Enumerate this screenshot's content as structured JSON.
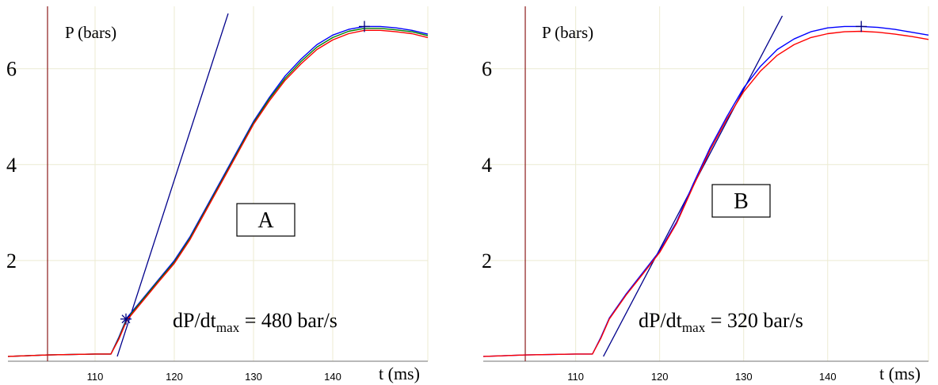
{
  "chart_data": [
    {
      "type": "line",
      "panel_label": "A",
      "ylabel": "P (bars)",
      "xlabel": "t (ms)",
      "xlim": [
        99,
        152
      ],
      "ylim": [
        -0.1,
        7.3
      ],
      "x_ticks": [
        "110",
        "120",
        "130",
        "140"
      ],
      "y_ticks": [
        "2",
        "4",
        "6"
      ],
      "annotation": {
        "prefix": "dP/dt",
        "subscript": "max",
        "suffix": " = 480 bar/s"
      },
      "trigger_time": 104,
      "colors": {
        "blue": "#0000ff",
        "green": "#008000",
        "red": "#ff0000",
        "tangent": "#00008b",
        "trigger": "#8b1a1a"
      },
      "series": [
        {
          "color": "blue",
          "x": [
            99,
            104,
            110,
            112,
            113,
            114,
            116,
            118,
            120,
            122,
            124,
            126,
            128,
            130,
            132,
            134,
            136,
            138,
            140,
            142,
            144,
            146,
            148,
            150,
            152
          ],
          "y": [
            0,
            0.03,
            0.05,
            0.05,
            0.4,
            0.8,
            1.2,
            1.6,
            2.0,
            2.5,
            3.1,
            3.7,
            4.3,
            4.9,
            5.4,
            5.85,
            6.2,
            6.5,
            6.7,
            6.82,
            6.88,
            6.88,
            6.85,
            6.8,
            6.72
          ]
        },
        {
          "color": "green",
          "x": [
            99,
            104,
            110,
            112,
            113,
            114,
            116,
            118,
            120,
            122,
            124,
            126,
            128,
            130,
            132,
            134,
            136,
            138,
            140,
            142,
            144,
            146,
            148,
            150,
            152
          ],
          "y": [
            0,
            0.03,
            0.05,
            0.05,
            0.38,
            0.78,
            1.18,
            1.58,
            1.97,
            2.47,
            3.07,
            3.67,
            4.27,
            4.87,
            5.37,
            5.8,
            6.15,
            6.45,
            6.65,
            6.78,
            6.84,
            6.84,
            6.81,
            6.77,
            6.69
          ]
        },
        {
          "color": "red",
          "x": [
            99,
            104,
            110,
            112,
            113,
            114,
            116,
            118,
            120,
            122,
            124,
            126,
            128,
            130,
            132,
            134,
            136,
            138,
            140,
            142,
            144,
            146,
            148,
            150,
            152
          ],
          "y": [
            0,
            0.03,
            0.05,
            0.05,
            0.36,
            0.75,
            1.15,
            1.55,
            1.94,
            2.44,
            3.04,
            3.64,
            4.24,
            4.84,
            5.33,
            5.76,
            6.1,
            6.4,
            6.6,
            6.73,
            6.8,
            6.8,
            6.77,
            6.73,
            6.65
          ]
        }
      ],
      "tangent": {
        "x": [
          112.8,
          126.8
        ],
        "y": [
          0.0,
          7.15
        ]
      },
      "markers": [
        {
          "x": 113.9,
          "y": 0.78,
          "symbol": "asterisk"
        },
        {
          "x": 144,
          "y": 6.88,
          "symbol": "plus"
        }
      ]
    },
    {
      "type": "line",
      "panel_label": "B",
      "ylabel": "P (bars)",
      "xlabel": "t (ms)",
      "xlim": [
        99,
        152
      ],
      "ylim": [
        -0.1,
        7.3
      ],
      "x_ticks": [
        "110",
        "120",
        "130",
        "140"
      ],
      "y_ticks": [
        "2",
        "4",
        "6"
      ],
      "annotation": {
        "prefix": "dP/dt",
        "subscript": "max",
        "suffix": " = 320 bar/s"
      },
      "trigger_time": 104,
      "colors": {
        "blue": "#0000ff",
        "red": "#ff0000",
        "tangent": "#00008b",
        "trigger": "#8b1a1a"
      },
      "series": [
        {
          "color": "blue",
          "x": [
            99,
            104,
            110,
            112,
            113,
            114,
            116,
            118,
            120,
            122,
            124,
            126,
            128,
            130,
            132,
            134,
            136,
            138,
            140,
            142,
            144,
            146,
            148,
            150,
            152
          ],
          "y": [
            0,
            0.03,
            0.05,
            0.05,
            0.4,
            0.8,
            1.3,
            1.75,
            2.2,
            2.8,
            3.6,
            4.35,
            5.0,
            5.6,
            6.05,
            6.4,
            6.62,
            6.77,
            6.85,
            6.88,
            6.88,
            6.86,
            6.82,
            6.76,
            6.7
          ]
        },
        {
          "color": "red",
          "x": [
            99,
            104,
            110,
            112,
            113,
            114,
            116,
            118,
            120,
            122,
            124,
            126,
            128,
            130,
            132,
            134,
            136,
            138,
            140,
            142,
            144,
            146,
            148,
            150,
            152
          ],
          "y": [
            0,
            0.03,
            0.05,
            0.05,
            0.38,
            0.78,
            1.28,
            1.72,
            2.17,
            2.77,
            3.55,
            4.3,
            4.95,
            5.52,
            5.95,
            6.28,
            6.5,
            6.65,
            6.73,
            6.77,
            6.78,
            6.76,
            6.72,
            6.67,
            6.61
          ]
        }
      ],
      "tangent": {
        "x": [
          113.3,
          134.6
        ],
        "y": [
          0.0,
          7.1
        ]
      },
      "markers": [
        {
          "x": 144,
          "y": 6.88,
          "symbol": "plus"
        }
      ]
    }
  ]
}
